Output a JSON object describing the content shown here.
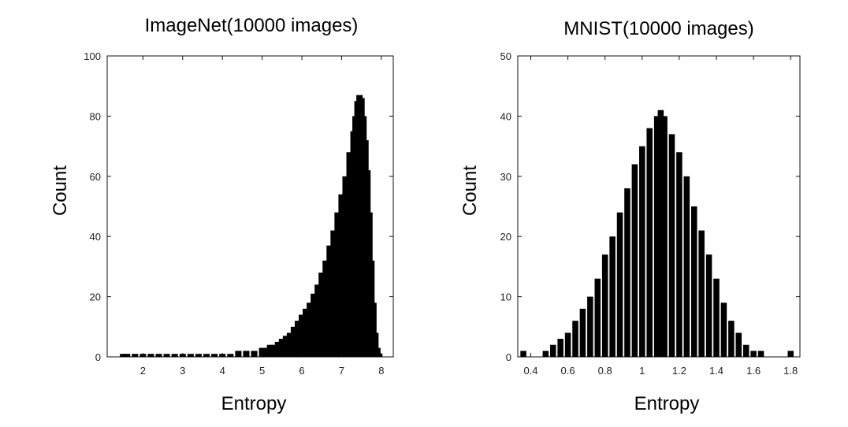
{
  "chart_data": [
    {
      "type": "bar",
      "title": "ImageNet(10000 images)",
      "xlabel": "Entropy",
      "ylabel": "Count",
      "xlim": [
        1.1,
        8.3
      ],
      "ylim": [
        0,
        100
      ],
      "xticks": [
        "2",
        "3",
        "4",
        "5",
        "6",
        "7",
        "8"
      ],
      "yticks": [
        "0",
        "20",
        "40",
        "60",
        "80",
        "100"
      ],
      "grid": false,
      "bin_width": 0.02,
      "x": [
        1.5,
        1.6,
        1.8,
        2.0,
        2.2,
        2.4,
        2.6,
        2.8,
        3.0,
        3.2,
        3.4,
        3.6,
        3.8,
        4.0,
        4.2,
        4.4,
        4.6,
        4.8,
        5.0,
        5.1,
        5.2,
        5.3,
        5.4,
        5.5,
        5.6,
        5.7,
        5.8,
        5.9,
        6.0,
        6.1,
        6.2,
        6.3,
        6.4,
        6.5,
        6.6,
        6.7,
        6.8,
        6.9,
        7.0,
        7.1,
        7.2,
        7.3,
        7.35,
        7.4,
        7.45,
        7.5,
        7.55,
        7.6,
        7.65,
        7.7,
        7.75,
        7.8,
        7.85,
        7.9,
        7.95,
        8.0
      ],
      "values": [
        1,
        1,
        1,
        1,
        1,
        1,
        1,
        1,
        1,
        1,
        1,
        1,
        1,
        1,
        1,
        2,
        2,
        2,
        3,
        3,
        4,
        4,
        5,
        6,
        7,
        8,
        10,
        12,
        14,
        16,
        18,
        21,
        24,
        28,
        32,
        37,
        42,
        48,
        54,
        60,
        68,
        75,
        80,
        85,
        87,
        86,
        80,
        72,
        62,
        48,
        32,
        18,
        8,
        3,
        1,
        0
      ]
    },
    {
      "type": "bar",
      "title": "MNIST(10000 images)",
      "xlabel": "Entropy",
      "ylabel": "Count",
      "xlim": [
        0.33,
        1.85
      ],
      "ylim": [
        0,
        50
      ],
      "xticks": [
        "0.4",
        "0.6",
        "0.8",
        "1",
        "1.2",
        "1.4",
        "1.6",
        "1.8"
      ],
      "yticks": [
        "0",
        "10",
        "20",
        "30",
        "40",
        "50"
      ],
      "grid": false,
      "bin_width": 0.004,
      "x": [
        0.36,
        0.4,
        0.44,
        0.48,
        0.52,
        0.56,
        0.6,
        0.64,
        0.68,
        0.72,
        0.76,
        0.8,
        0.84,
        0.88,
        0.92,
        0.96,
        1.0,
        1.04,
        1.08,
        1.1,
        1.12,
        1.16,
        1.2,
        1.24,
        1.28,
        1.32,
        1.36,
        1.4,
        1.44,
        1.48,
        1.52,
        1.56,
        1.6,
        1.64,
        1.68,
        1.72,
        1.76,
        1.8
      ],
      "values": [
        1,
        0,
        0,
        1,
        2,
        3,
        4,
        6,
        8,
        10,
        13,
        17,
        20,
        24,
        28,
        32,
        35,
        38,
        40,
        41,
        40,
        37,
        34,
        30,
        25,
        21,
        17,
        13,
        9,
        6,
        4,
        2,
        1,
        1,
        0,
        0,
        0,
        1
      ]
    }
  ]
}
